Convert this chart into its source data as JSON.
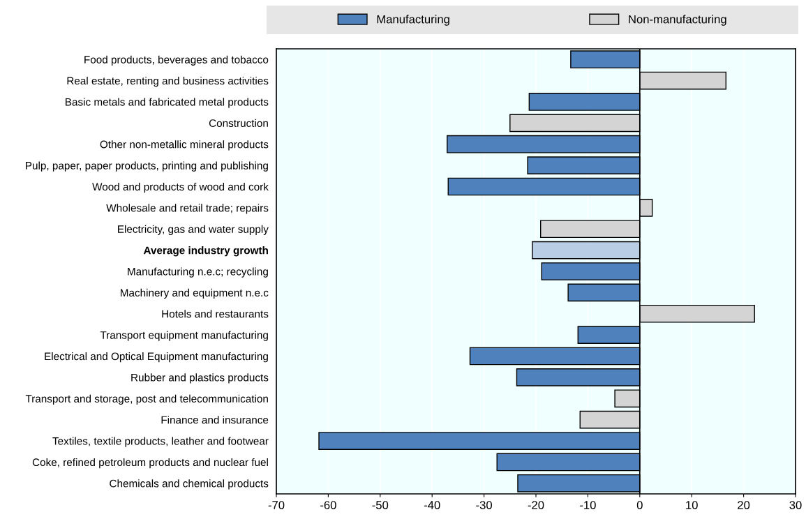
{
  "chart_data": {
    "type": "bar",
    "orientation": "horizontal",
    "categories": [
      "Food products, beverages and tobacco",
      "Real estate, renting and business activities",
      "Basic metals and fabricated metal products",
      "Construction",
      "Other non-metallic mineral products",
      "Pulp, paper, paper products, printing and publishing",
      "Wood and products of wood and cork",
      "Wholesale and retail trade; repairs",
      "Electricity, gas and water supply",
      "Average industry growth",
      "Manufacturing n.e.c; recycling",
      "Machinery and equipment n.e.c",
      "Hotels and restaurants",
      "Transport equipment manufacturing",
      "Electrical and Optical Equipment manufacturing",
      "Rubber and plastics products",
      "Transport and storage, post and telecommunication",
      "Finance and insurance",
      "Textiles, textile products, leather and footwear",
      "Coke, refined petroleum products and nuclear fuel",
      "Chemicals and chemical products"
    ],
    "series": [
      {
        "name": "Manufacturing",
        "color": "#4f81bd",
        "values": [
          -13.3,
          null,
          -21.3,
          null,
          -37.1,
          -21.6,
          -36.9,
          null,
          null,
          null,
          -18.9,
          -13.8,
          null,
          -11.9,
          -32.7,
          -23.7,
          null,
          null,
          -61.8,
          -27.5,
          -23.5
        ]
      },
      {
        "name": "Non-manufacturing",
        "color": "#d4d4d4",
        "values": [
          null,
          16.6,
          null,
          -25.0,
          null,
          null,
          null,
          2.4,
          -19.1,
          null,
          null,
          null,
          22.1,
          null,
          null,
          null,
          -4.8,
          -11.5,
          null,
          null,
          null
        ]
      },
      {
        "color": "#b9cde5",
        "values": [
          null,
          null,
          null,
          null,
          null,
          null,
          null,
          null,
          null,
          -20.7,
          null,
          null,
          null,
          null,
          null,
          null,
          null,
          null,
          null,
          null,
          null
        ]
      }
    ],
    "xlim": [
      -70,
      30
    ],
    "xticks": [
      -70,
      -60,
      -50,
      -40,
      -30,
      -20,
      -10,
      0,
      10,
      20,
      30
    ],
    "grid": "x",
    "legend": "top"
  }
}
